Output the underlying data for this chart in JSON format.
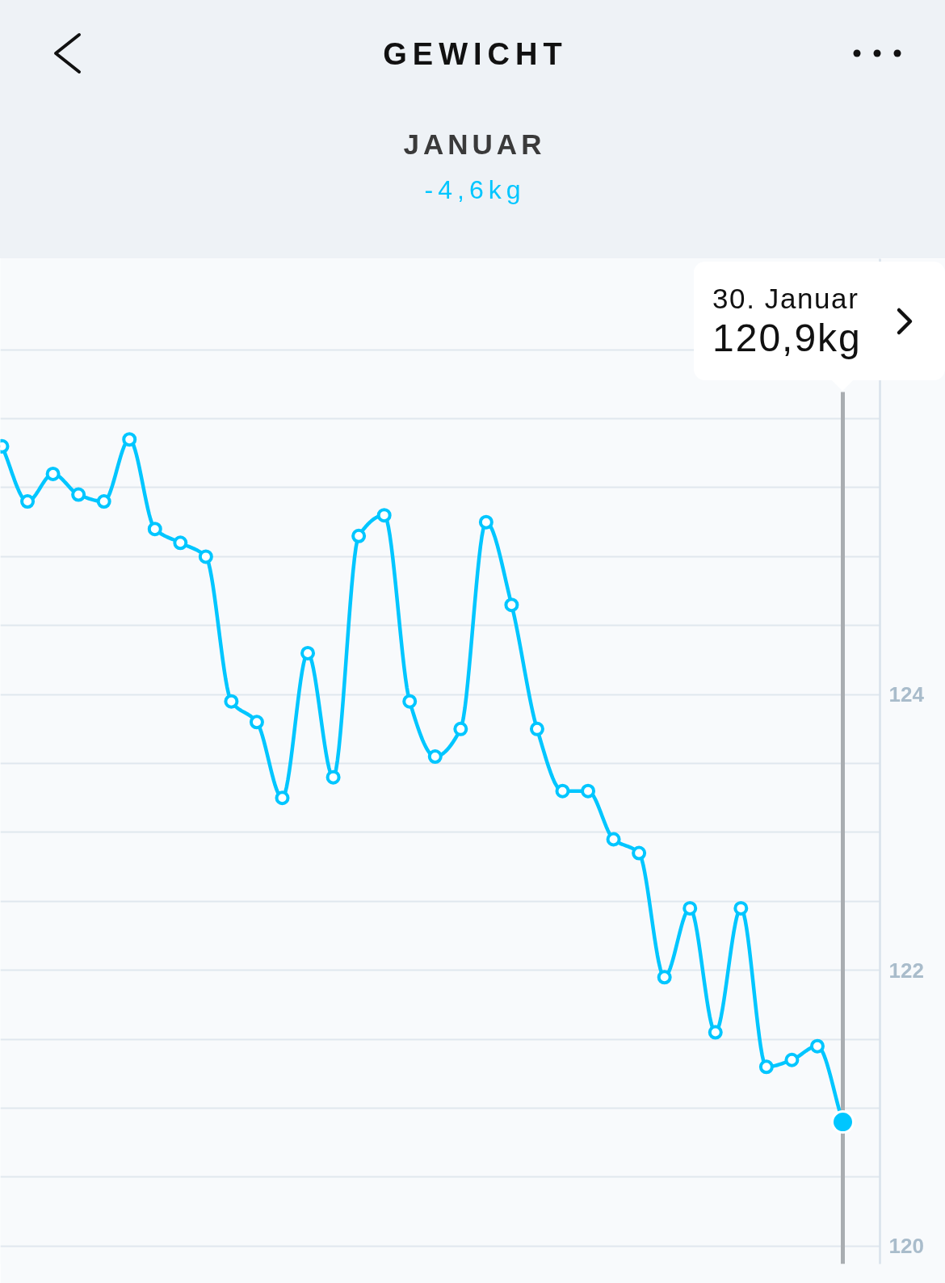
{
  "chart_data": {
    "type": "line",
    "title": "GEWICHT",
    "subtitle": "JANUAR",
    "annotations": [
      "-4,6kg",
      "30. Januar",
      "120,9kg"
    ],
    "categories": [
      null,
      null,
      null,
      null,
      null,
      null,
      null,
      null,
      null,
      null,
      null,
      null,
      null,
      null,
      null,
      null,
      null,
      null,
      null,
      null,
      null,
      null,
      null,
      null,
      null,
      null,
      null,
      null,
      null,
      null,
      null,
      null,
      null,
      null
    ],
    "values": [
      125.8,
      125.4,
      125.6,
      125.45,
      125.4,
      125.85,
      125.2,
      125.1,
      125.0,
      123.95,
      123.8,
      123.25,
      124.3,
      123.4,
      125.15,
      125.3,
      123.95,
      123.55,
      123.75,
      125.25,
      124.65,
      123.75,
      123.3,
      123.3,
      122.95,
      122.85,
      121.95,
      122.45,
      121.55,
      122.45,
      121.3,
      121.35,
      121.45,
      120.9
    ],
    "color": "#00c6ff",
    "ylim": [
      119.87,
      127.16
    ],
    "yticks": [
      120,
      {
        "value": 120.5,
        "label": null
      },
      {
        "value": 121,
        "label": null
      },
      {
        "value": 121.5,
        "label": null
      },
      122,
      {
        "value": 122.5,
        "label": null
      },
      {
        "value": 123,
        "label": null
      },
      {
        "value": 123.5,
        "label": null
      },
      124,
      {
        "value": 124.5,
        "label": null
      },
      {
        "value": 125,
        "label": null
      },
      {
        "value": 125.5,
        "label": null
      },
      {
        "value": 126,
        "label": null
      },
      {
        "value": 126.5,
        "label": null
      }
    ],
    "grid": "y",
    "tick_labels": "y",
    "marker": "circle",
    "line_style": "solid"
  }
}
